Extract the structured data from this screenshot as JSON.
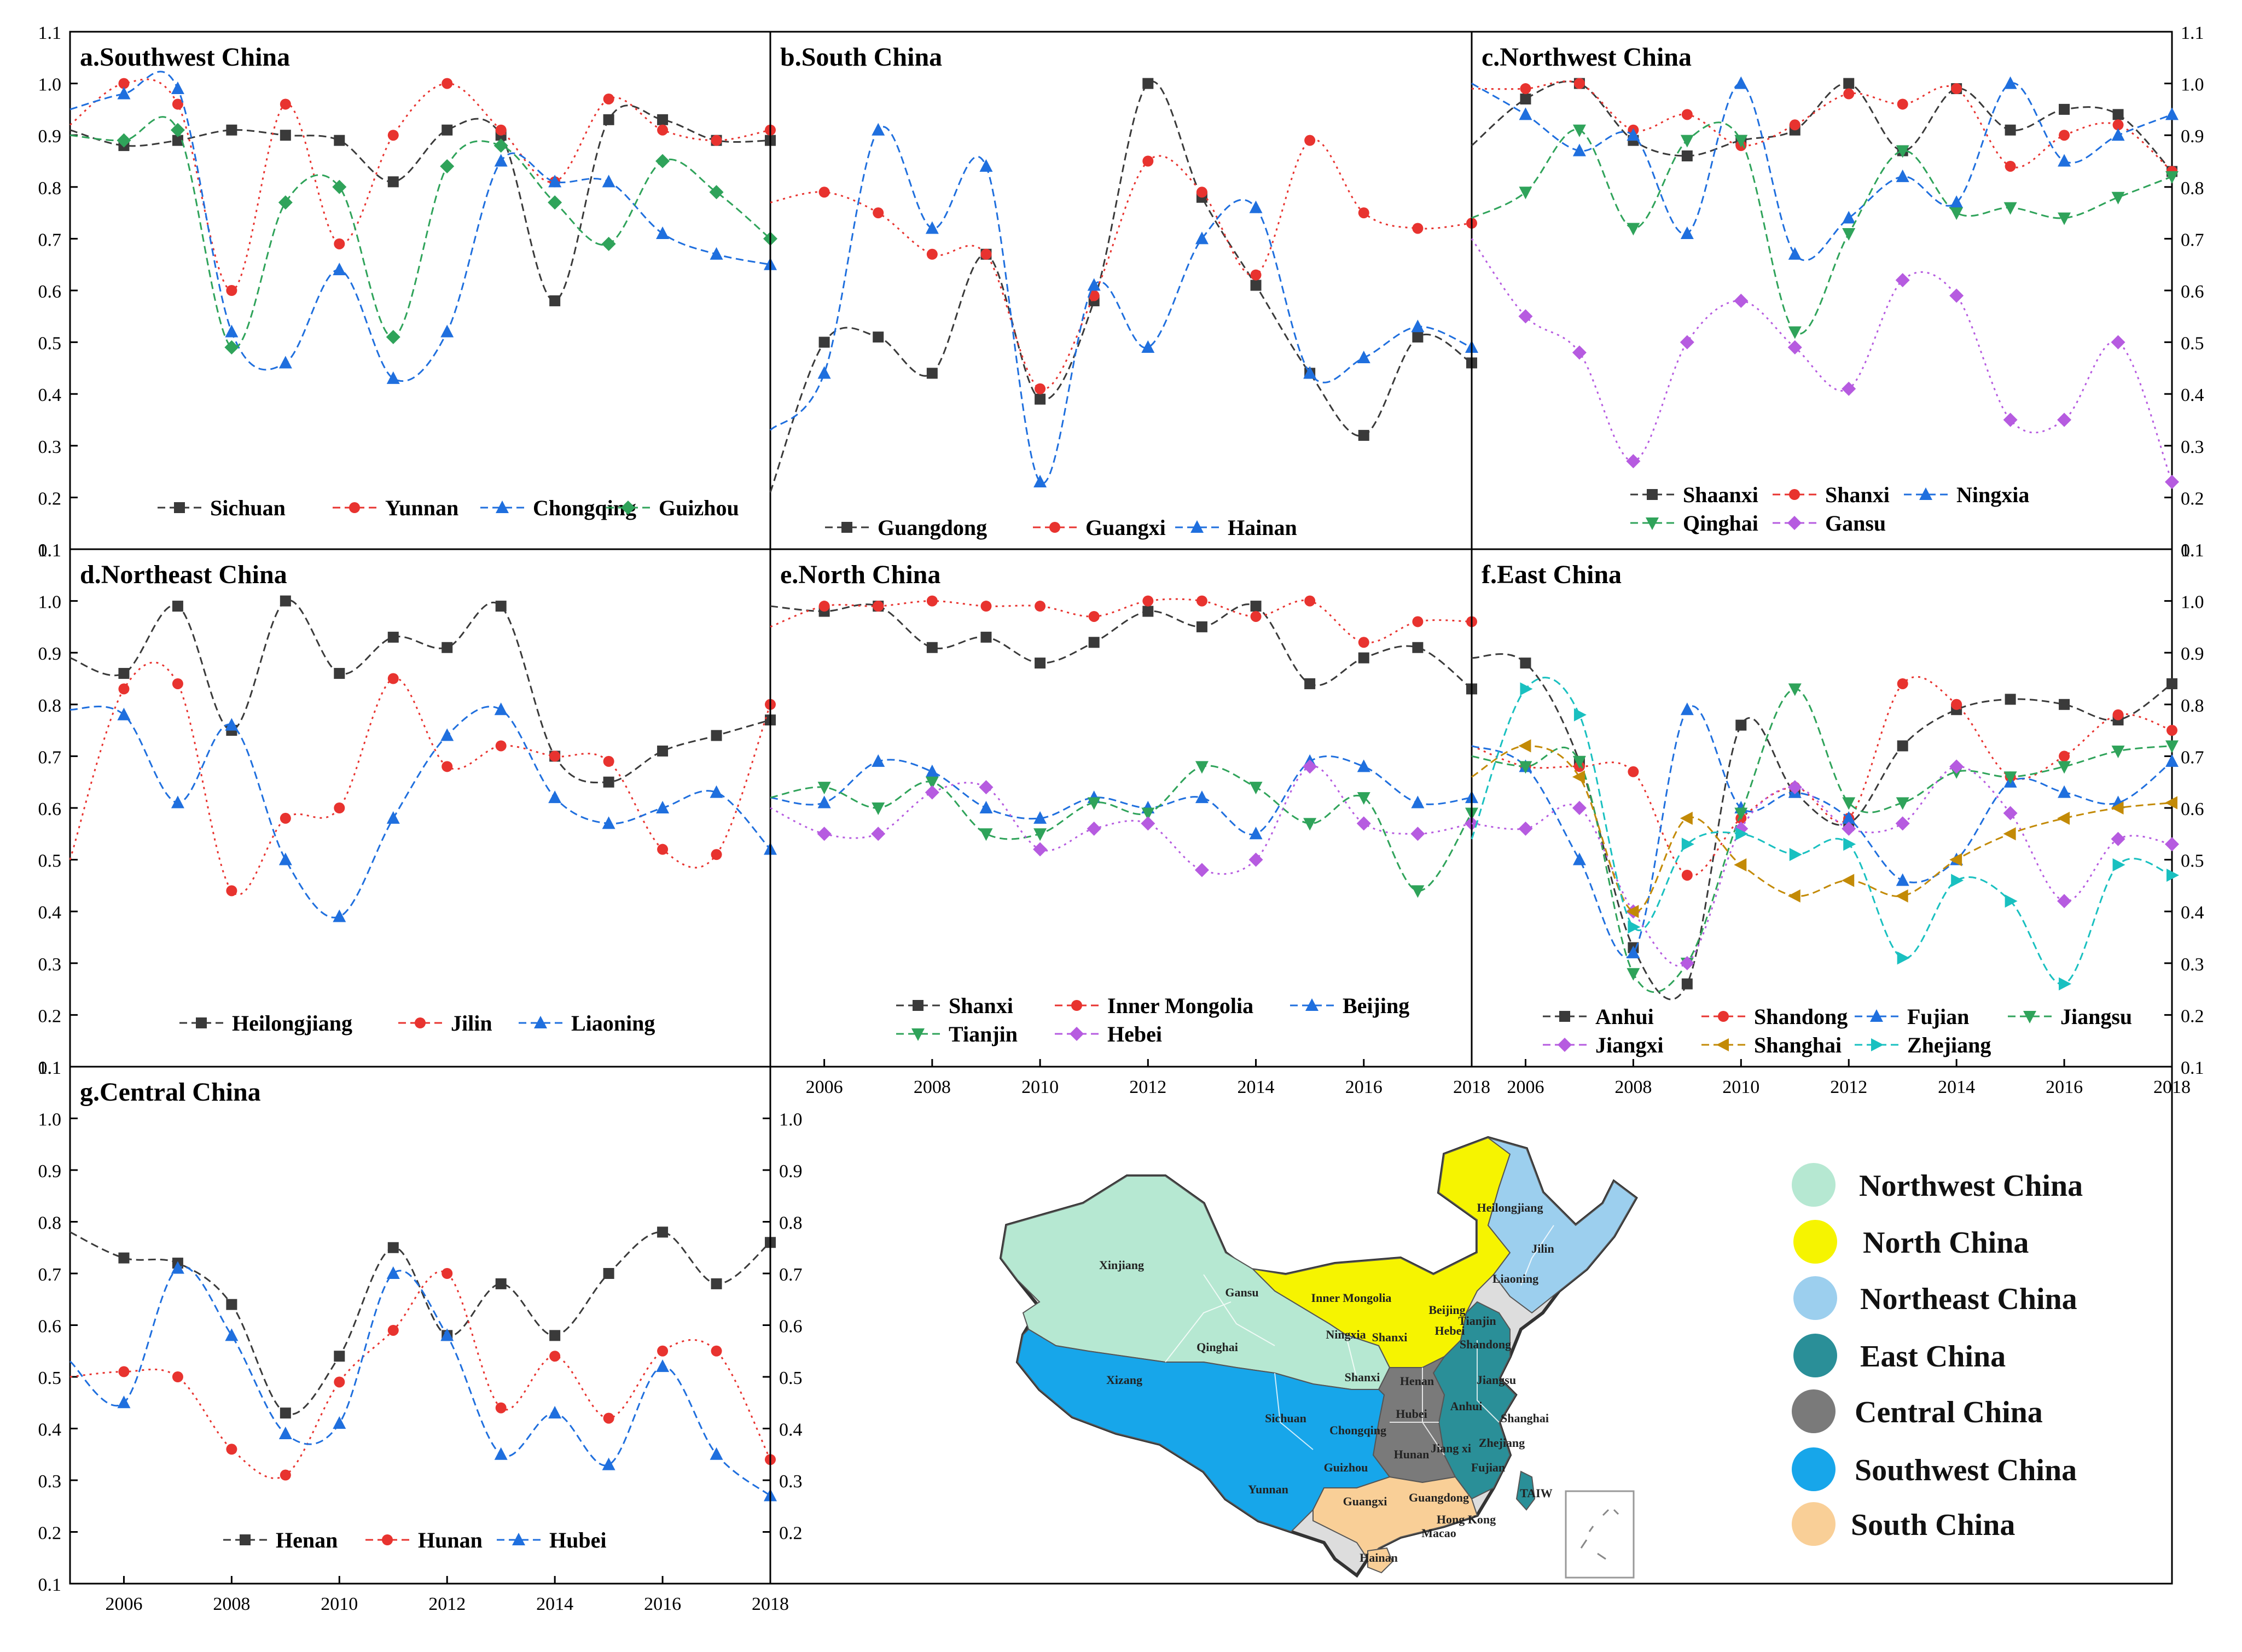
{
  "colors": {
    "black": "#3a3a3a",
    "red": "#e8332f",
    "blue": "#1f6fde",
    "green": "#2fa35a",
    "purple": "#b65be0",
    "gold": "#c38a06",
    "cyan": "#19c0c0",
    "northwest": "#b6e8d2",
    "north": "#f6f400",
    "northeast": "#9ccfee",
    "east": "#2a8f98",
    "central": "#7a7a7a",
    "southwest": "#17a6ea",
    "south": "#f9cf97"
  },
  "axes": {
    "years": [
      2005,
      2006,
      2007,
      2008,
      2009,
      2010,
      2011,
      2012,
      2013,
      2014,
      2015,
      2016,
      2017,
      2018
    ],
    "x_ticks": [
      "2006",
      "2008",
      "2010",
      "2012",
      "2014",
      "2016",
      "2018"
    ],
    "y_ticks": [
      "0.1",
      "0.2",
      "0.3",
      "0.4",
      "0.5",
      "0.6",
      "0.7",
      "0.8",
      "0.9",
      "1.0",
      "1.1"
    ],
    "ylim": [
      0.1,
      1.1
    ]
  },
  "chart_data": [
    {
      "id": "a",
      "type": "line",
      "title": "a.Southwest China",
      "series": [
        {
          "name": "Sichuan",
          "color": "black",
          "marker": "square",
          "values": [
            0.91,
            0.88,
            0.89,
            0.91,
            0.9,
            0.89,
            0.81,
            0.91,
            0.9,
            0.58,
            0.93,
            0.93,
            0.89,
            0.89
          ]
        },
        {
          "name": "Yunnan",
          "color": "red",
          "marker": "circle",
          "values": [
            0.92,
            1.0,
            0.96,
            0.6,
            0.96,
            0.69,
            0.9,
            1.0,
            0.91,
            0.81,
            0.97,
            0.91,
            0.89,
            0.91
          ]
        },
        {
          "name": "Chongqing",
          "color": "blue",
          "marker": "triangle",
          "values": [
            0.95,
            0.98,
            0.99,
            0.52,
            0.46,
            0.64,
            0.43,
            0.52,
            0.85,
            0.81,
            0.81,
            0.71,
            0.67,
            0.65
          ]
        },
        {
          "name": "Guizhou",
          "color": "green",
          "marker": "diamond",
          "values": [
            0.9,
            0.89,
            0.91,
            0.49,
            0.77,
            0.8,
            0.51,
            0.84,
            0.88,
            0.77,
            0.69,
            0.85,
            0.79,
            0.7
          ]
        }
      ]
    },
    {
      "id": "b",
      "type": "line",
      "title": "b.South China",
      "series": [
        {
          "name": "Guangdong",
          "color": "black",
          "marker": "square",
          "values": [
            0.21,
            0.5,
            0.51,
            0.44,
            0.67,
            0.39,
            0.58,
            1.0,
            0.78,
            0.61,
            0.44,
            0.32,
            0.51,
            0.46
          ]
        },
        {
          "name": "Guangxi",
          "color": "red",
          "marker": "circle",
          "values": [
            0.77,
            0.79,
            0.75,
            0.67,
            0.67,
            0.41,
            0.59,
            0.85,
            0.79,
            0.63,
            0.89,
            0.75,
            0.72,
            0.73
          ]
        },
        {
          "name": "Hainan",
          "color": "blue",
          "marker": "triangle",
          "values": [
            0.33,
            0.44,
            0.91,
            0.72,
            0.84,
            0.23,
            0.61,
            0.49,
            0.7,
            0.76,
            0.44,
            0.47,
            0.53,
            0.49
          ]
        }
      ]
    },
    {
      "id": "c",
      "type": "line",
      "title": "c.Northwest China",
      "series": [
        {
          "name": "Shaanxi",
          "color": "black",
          "marker": "square",
          "values": [
            0.88,
            0.97,
            1.0,
            0.89,
            0.86,
            0.89,
            0.91,
            1.0,
            0.87,
            0.99,
            0.91,
            0.95,
            0.94,
            0.83
          ]
        },
        {
          "name": "Shanxi",
          "color": "red",
          "marker": "circle",
          "values": [
            0.99,
            0.99,
            1.0,
            0.91,
            0.94,
            0.88,
            0.92,
            0.98,
            0.96,
            0.99,
            0.84,
            0.9,
            0.92,
            0.83
          ]
        },
        {
          "name": "Ningxia",
          "color": "blue",
          "marker": "triangle",
          "values": [
            1.0,
            0.94,
            0.87,
            0.9,
            0.71,
            1.0,
            0.67,
            0.74,
            0.82,
            0.77,
            1.0,
            0.85,
            0.9,
            0.94
          ]
        },
        {
          "name": "Qinghai",
          "color": "green",
          "marker": "tri-down",
          "values": [
            0.74,
            0.79,
            0.91,
            0.72,
            0.89,
            0.89,
            0.52,
            0.71,
            0.87,
            0.75,
            0.76,
            0.74,
            0.78,
            0.82
          ]
        },
        {
          "name": "Gansu",
          "color": "purple",
          "marker": "diamond",
          "values": [
            0.7,
            0.55,
            0.48,
            0.27,
            0.5,
            0.58,
            0.49,
            0.41,
            0.62,
            0.59,
            0.35,
            0.35,
            0.5,
            0.23
          ]
        }
      ]
    },
    {
      "id": "d",
      "type": "line",
      "title": "d.Northeast China",
      "series": [
        {
          "name": "Heilongjiang",
          "color": "black",
          "marker": "square",
          "values": [
            0.89,
            0.86,
            0.99,
            0.75,
            1.0,
            0.86,
            0.93,
            0.91,
            0.99,
            0.7,
            0.65,
            0.71,
            0.74,
            0.77
          ]
        },
        {
          "name": "Jilin",
          "color": "red",
          "marker": "circle",
          "values": [
            0.5,
            0.83,
            0.84,
            0.44,
            0.58,
            0.6,
            0.85,
            0.68,
            0.72,
            0.7,
            0.69,
            0.52,
            0.51,
            0.8
          ]
        },
        {
          "name": "Liaoning",
          "color": "blue",
          "marker": "triangle",
          "values": [
            0.79,
            0.78,
            0.61,
            0.76,
            0.5,
            0.39,
            0.58,
            0.74,
            0.79,
            0.62,
            0.57,
            0.6,
            0.63,
            0.52
          ]
        }
      ]
    },
    {
      "id": "e",
      "type": "line",
      "title": "e.North China",
      "series": [
        {
          "name": "Shanxi",
          "color": "black",
          "marker": "square",
          "values": [
            0.99,
            0.98,
            0.99,
            0.91,
            0.93,
            0.88,
            0.92,
            0.98,
            0.95,
            0.99,
            0.84,
            0.89,
            0.91,
            0.83
          ]
        },
        {
          "name": "Inner Mongolia",
          "color": "red",
          "marker": "circle",
          "values": [
            0.95,
            0.99,
            0.99,
            1.0,
            0.99,
            0.99,
            0.97,
            1.0,
            1.0,
            0.97,
            1.0,
            0.92,
            0.96,
            0.96
          ]
        },
        {
          "name": "Beijing",
          "color": "blue",
          "marker": "triangle",
          "values": [
            0.62,
            0.61,
            0.69,
            0.67,
            0.6,
            0.58,
            0.62,
            0.6,
            0.62,
            0.55,
            0.69,
            0.68,
            0.61,
            0.62
          ]
        },
        {
          "name": "Tianjin",
          "color": "green",
          "marker": "tri-down",
          "values": [
            0.62,
            0.64,
            0.6,
            0.65,
            0.55,
            0.55,
            0.61,
            0.59,
            0.68,
            0.64,
            0.57,
            0.62,
            0.44,
            0.59
          ]
        },
        {
          "name": "Hebei",
          "color": "purple",
          "marker": "diamond",
          "values": [
            0.6,
            0.55,
            0.55,
            0.63,
            0.64,
            0.52,
            0.56,
            0.57,
            0.48,
            0.5,
            0.68,
            0.57,
            0.55,
            0.57
          ]
        }
      ]
    },
    {
      "id": "f",
      "type": "line",
      "title": "f.East China",
      "series": [
        {
          "name": "Anhui",
          "color": "black",
          "marker": "square",
          "values": [
            0.89,
            0.88,
            0.69,
            0.33,
            0.26,
            0.76,
            0.63,
            0.57,
            0.72,
            0.79,
            0.81,
            0.8,
            0.77,
            0.84
          ]
        },
        {
          "name": "Shandong",
          "color": "red",
          "marker": "circle",
          "values": [
            0.72,
            0.68,
            0.68,
            0.67,
            0.47,
            0.58,
            0.64,
            0.58,
            0.84,
            0.8,
            0.66,
            0.7,
            0.78,
            0.75
          ]
        },
        {
          "name": "Fujian",
          "color": "blue",
          "marker": "triangle",
          "values": [
            0.72,
            0.68,
            0.5,
            0.32,
            0.79,
            0.6,
            0.63,
            0.58,
            0.46,
            0.5,
            0.65,
            0.63,
            0.61,
            0.69
          ]
        },
        {
          "name": "Jiangsu",
          "color": "green",
          "marker": "tri-down",
          "values": [
            0.7,
            0.68,
            0.69,
            0.28,
            0.3,
            0.59,
            0.83,
            0.61,
            0.61,
            0.67,
            0.66,
            0.68,
            0.71,
            0.72
          ]
        },
        {
          "name": "Jiangxi",
          "color": "purple",
          "marker": "diamond",
          "values": [
            0.57,
            0.56,
            0.6,
            0.4,
            0.3,
            0.56,
            0.64,
            0.56,
            0.57,
            0.68,
            0.59,
            0.42,
            0.54,
            0.53
          ]
        },
        {
          "name": "Shanghai",
          "color": "gold",
          "marker": "tri-left",
          "values": [
            0.66,
            0.72,
            0.66,
            0.4,
            0.58,
            0.49,
            0.43,
            0.46,
            0.43,
            0.5,
            0.55,
            0.58,
            0.6,
            0.61
          ]
        },
        {
          "name": "Zhejiang",
          "color": "cyan",
          "marker": "tri-right",
          "values": [
            0.54,
            0.83,
            0.78,
            0.37,
            0.53,
            0.55,
            0.51,
            0.53,
            0.31,
            0.46,
            0.42,
            0.26,
            0.49,
            0.47
          ]
        }
      ]
    },
    {
      "id": "g",
      "type": "line",
      "title": "g.Central China",
      "series": [
        {
          "name": "Henan",
          "color": "black",
          "marker": "square",
          "values": [
            0.78,
            0.73,
            0.72,
            0.64,
            0.43,
            0.54,
            0.75,
            0.58,
            0.68,
            0.58,
            0.7,
            0.78,
            0.68,
            0.76
          ]
        },
        {
          "name": "Hunan",
          "color": "red",
          "marker": "circle",
          "values": [
            0.5,
            0.51,
            0.5,
            0.36,
            0.31,
            0.49,
            0.59,
            0.7,
            0.44,
            0.54,
            0.42,
            0.55,
            0.55,
            0.34
          ]
        },
        {
          "name": "Hubei",
          "color": "blue",
          "marker": "triangle",
          "values": [
            0.53,
            0.45,
            0.71,
            0.58,
            0.39,
            0.41,
            0.7,
            0.58,
            0.35,
            0.43,
            0.33,
            0.52,
            0.35,
            0.27
          ]
        }
      ]
    }
  ],
  "map": {
    "legend": [
      {
        "label": "Northwest China",
        "color": "northwest"
      },
      {
        "label": "North China",
        "color": "north"
      },
      {
        "label": "Northeast China",
        "color": "northeast"
      },
      {
        "label": "East China",
        "color": "east"
      },
      {
        "label": "Central China",
        "color": "central"
      },
      {
        "label": "Southwest China",
        "color": "southwest"
      },
      {
        "label": "South China",
        "color": "south"
      }
    ],
    "labels": [
      "Xinjiang",
      "Gansu",
      "Inner Mongolia",
      "Heilongjiang",
      "Jilin",
      "Liaoning",
      "Beijing",
      "Tianjin",
      "Hebei",
      "Ningxia",
      "Qinghai",
      "Shanxi",
      "Shandong",
      "Xizang",
      "Shanxi",
      "Henan",
      "Jiangsu",
      "Anhui",
      "Hubei",
      "Shanghai",
      "Sichuan",
      "Chongqing",
      "Zhejiang",
      "Hunan",
      "Jiang xi",
      "Fujian",
      "Guizhou",
      "Yunnan",
      "TAIW",
      "Guangxi",
      "Guangdong",
      "Hong Kong",
      "Macao",
      "Hainan"
    ]
  }
}
